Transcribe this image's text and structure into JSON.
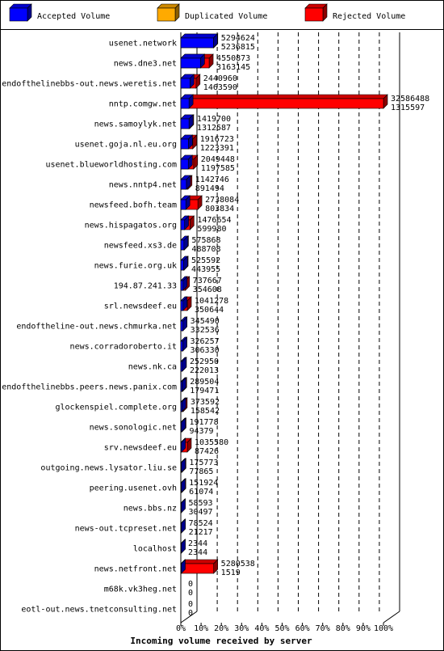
{
  "chart_data": {
    "type": "bar",
    "orientation": "horizontal",
    "stacked": true,
    "title": "",
    "xlabel": "Incoming volume received by server",
    "ylabel": "",
    "xlim": [
      0,
      100
    ],
    "x_ticks": [
      "0%",
      "10%",
      "20%",
      "30%",
      "40%",
      "50%",
      "60%",
      "70%",
      "80%",
      "90%",
      "100%"
    ],
    "legend_position": "top",
    "grid": true,
    "series": [
      {
        "name": "Accepted Volume",
        "color": "#0000ff"
      },
      {
        "name": "Duplicated Volume",
        "color": "#ffaa00"
      },
      {
        "name": "Rejected Volume",
        "color": "#ff0000"
      }
    ],
    "categories": [
      "usenet.network",
      "news.dne3.net",
      "endofthelinebbs-out.news.weretis.net",
      "nntp.comgw.net",
      "news.samoylyk.net",
      "usenet.goja.nl.eu.org",
      "usenet.blueworldhosting.com",
      "news.nntp4.net",
      "newsfeed.bofh.team",
      "news.hispagatos.org",
      "newsfeed.xs3.de",
      "news.furie.org.uk",
      "194.87.241.33",
      "srl.newsdeef.eu",
      "endoftheline-out.news.chmurka.net",
      "news.corradoroberto.it",
      "news.nk.ca",
      "endofthelinebbs.peers.news.panix.com",
      "glockenspiel.complete.org",
      "news.sonologic.net",
      "srv.newsdeef.eu",
      "outgoing.news.lysator.liu.se",
      "peering.usenet.ovh",
      "news.bbs.nz",
      "news-out.tcpreset.net",
      "localhost",
      "news.netfront.net",
      "m68k.vk3heg.net",
      "eotl-out.news.tnetconsulting.net"
    ],
    "total_volume": [
      5294624,
      4550873,
      2440960,
      32586488,
      1419700,
      1916723,
      2049448,
      1142746,
      2738084,
      1476654,
      575868,
      525592,
      737667,
      1041278,
      345490,
      326257,
      252950,
      289504,
      373592,
      191778,
      1035580,
      175773,
      151924,
      58593,
      78524,
      2344,
      5280538,
      0,
      0
    ],
    "accepted_volume": [
      5236815,
      3163145,
      1463590,
      1315597,
      1312587,
      1223391,
      1197585,
      891494,
      803834,
      599980,
      488708,
      443955,
      354608,
      350644,
      332536,
      306330,
      222013,
      179471,
      158542,
      94379,
      87426,
      77865,
      61074,
      30497,
      21217,
      2344,
      1519,
      0,
      0
    ],
    "max_volume": 32586488
  }
}
